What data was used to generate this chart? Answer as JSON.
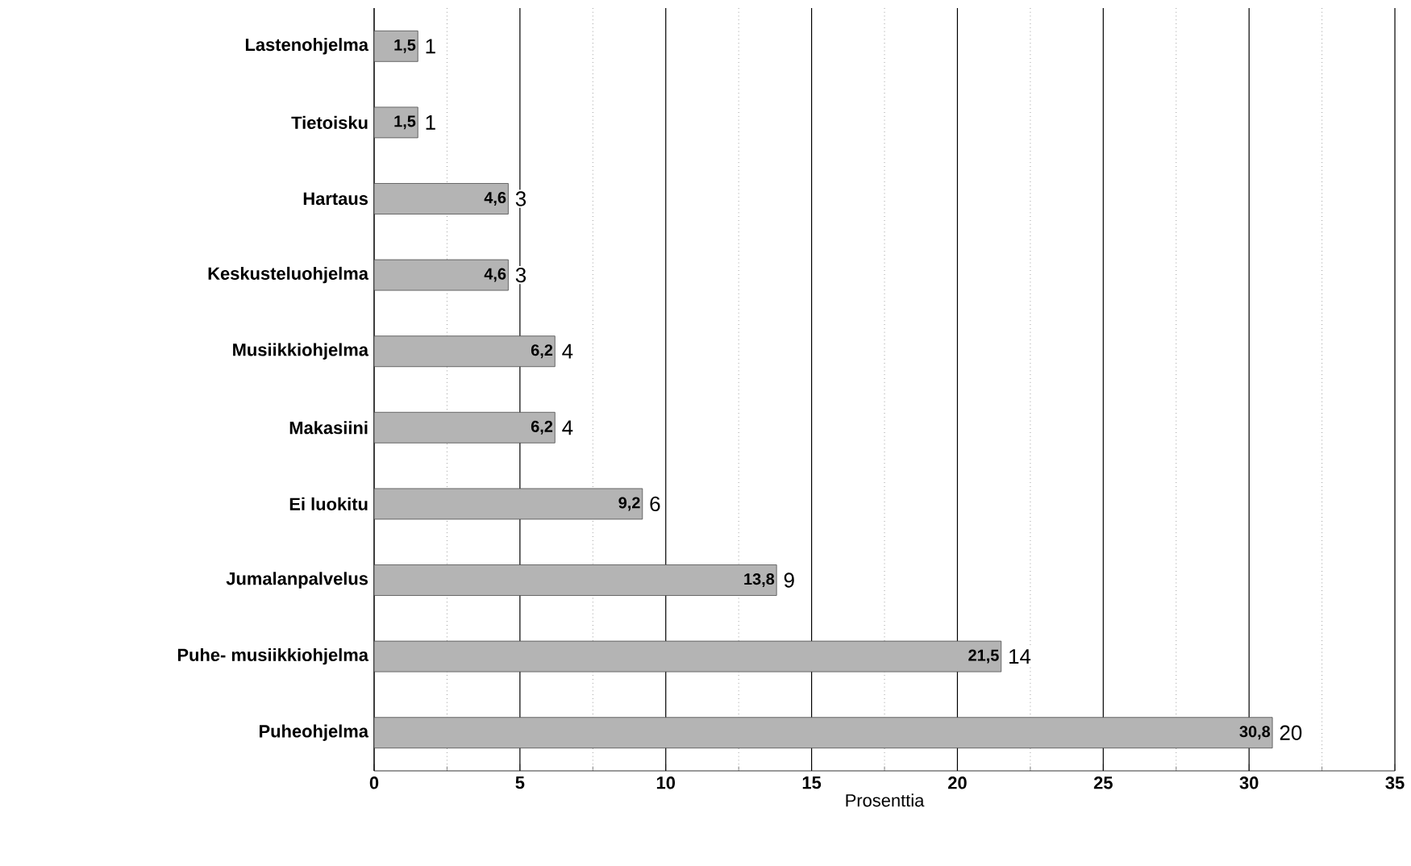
{
  "chart_data": {
    "type": "bar",
    "orientation": "horizontal",
    "xlabel": "Prosenttia",
    "categories": [
      "Lastenohjelma",
      "Tietoisku",
      "Hartaus",
      "Keskusteluohjelma",
      "Musiikkiohjelma",
      "Makasiini",
      "Ei luokitu",
      "Jumalanpalvelus",
      "Puhe- musiikkiohjelma",
      "Puheohjelma"
    ],
    "values": [
      1.5,
      1.5,
      4.6,
      4.6,
      6.2,
      6.2,
      9.2,
      13.8,
      21.5,
      30.8
    ],
    "value_labels": [
      "1,5",
      "1,5",
      "4,6",
      "4,6",
      "6,2",
      "6,2",
      "9,2",
      "13,8",
      "21,5",
      "30,8"
    ],
    "color": "#b4b4b4",
    "xlim": [
      0,
      35
    ],
    "xticks": [
      0,
      5,
      10,
      15,
      20,
      25,
      30,
      35
    ],
    "grid": "x",
    "annotations": [
      {
        "text": "1",
        "x": 1.5,
        "y": "Lastenohjelma"
      },
      {
        "text": "1",
        "x": 1.5,
        "y": "Tietoisku"
      },
      {
        "text": "3",
        "x": 4.6,
        "y": "Hartaus"
      },
      {
        "text": "3",
        "x": 4.6,
        "y": "Keskusteluohjelma"
      },
      {
        "text": "4",
        "x": 6.2,
        "y": "Musiikkiohjelma"
      },
      {
        "text": "4",
        "x": 6.2,
        "y": "Makasiini"
      },
      {
        "text": "6",
        "x": 9.2,
        "y": "Ei luokitu"
      },
      {
        "text": "9",
        "x": 13.8,
        "y": "Jumalanpalvelus"
      },
      {
        "text": "14",
        "x": 21.5,
        "y": "Puhe- musiikkiohjelma"
      },
      {
        "text": "20",
        "x": 30.8,
        "y": "Puheohjelma"
      }
    ]
  }
}
